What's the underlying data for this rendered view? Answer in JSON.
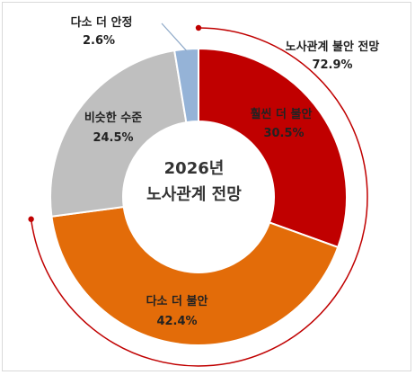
{
  "chart_data": {
    "type": "pie",
    "title": "",
    "center_title": [
      "2026년",
      "노사관계 전망"
    ],
    "slices": [
      {
        "label": "훨씬 더 불안",
        "value": 30.5,
        "display": "30.5%",
        "color": "#c00000"
      },
      {
        "label": "다소 더 불안",
        "value": 42.4,
        "display": "42.4%",
        "color": "#e36c09"
      },
      {
        "label": "비슷한 수준",
        "value": 24.5,
        "display": "24.5%",
        "color": "#bfbfbf"
      },
      {
        "label": "다소 더 안정",
        "value": 2.6,
        "display": "2.6%",
        "color": "#95b3d7"
      }
    ],
    "group_annotation": {
      "label": "노사관계 불안 전망",
      "value": 72.9,
      "display": "72.9%",
      "color": "#c00000"
    }
  }
}
